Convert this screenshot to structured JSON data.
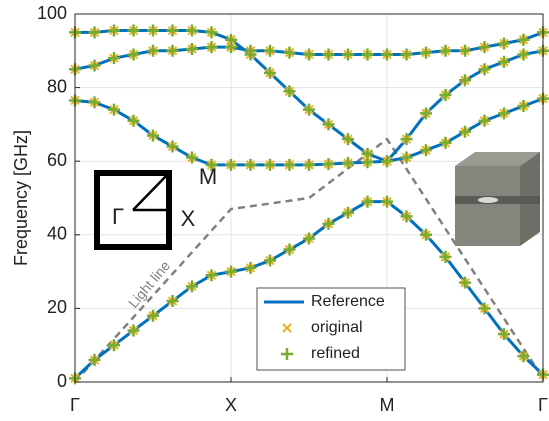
{
  "chart_data": {
    "type": "band",
    "ylabel": "Frequency [GHz]",
    "xlim": [
      0,
      3
    ],
    "xticks": [
      {
        "value": 0,
        "label": "Γ"
      },
      {
        "value": 1,
        "label": "X"
      },
      {
        "value": 2,
        "label": "M"
      },
      {
        "value": 3,
        "label": "Γ"
      }
    ],
    "ylim": [
      0,
      100
    ],
    "yticks": [
      0,
      20,
      40,
      60,
      80,
      100
    ],
    "grid": true,
    "x": [
      0,
      0.125,
      0.25,
      0.375,
      0.5,
      0.625,
      0.75,
      0.875,
      1,
      1.125,
      1.25,
      1.375,
      1.5,
      1.625,
      1.75,
      1.875,
      2,
      2.125,
      2.25,
      2.375,
      2.5,
      2.625,
      2.75,
      2.875,
      3
    ],
    "series": [
      {
        "name": "Reference",
        "color": "#0072bd",
        "style": "line",
        "values": [
          [
            1,
            6,
            10,
            14,
            18,
            22,
            26,
            29,
            30,
            31,
            33,
            36,
            39,
            43,
            46,
            49,
            49,
            45,
            40,
            34,
            27,
            20,
            13,
            7,
            2
          ],
          [
            76.5,
            76,
            74,
            71,
            67,
            64,
            61,
            59,
            59,
            59,
            59,
            59,
            59,
            59.2,
            59.5,
            59.7,
            60,
            61,
            63,
            65,
            68,
            71,
            73,
            75,
            77
          ],
          [
            85,
            86,
            88,
            89,
            90,
            90,
            90.5,
            91,
            91,
            90,
            90,
            89.5,
            89,
            89,
            89,
            89,
            89,
            89,
            89.5,
            90,
            90,
            91,
            92,
            93,
            95
          ],
          [
            95,
            95,
            95.5,
            95.5,
            95.5,
            95.5,
            95.5,
            95,
            93,
            89,
            84,
            79,
            74,
            70,
            66,
            62,
            60,
            66,
            73,
            78,
            82,
            85,
            87,
            89,
            90
          ]
        ]
      },
      {
        "name": "original",
        "color": "#edb120",
        "style": "x",
        "values": [
          [
            1,
            6,
            10,
            14,
            18,
            22,
            26,
            29,
            30,
            31,
            33,
            36,
            39,
            43,
            46,
            49,
            49,
            45,
            40,
            34,
            27,
            20,
            13,
            7,
            2
          ],
          [
            76.5,
            76,
            74,
            71,
            67,
            64,
            61,
            59,
            59,
            59,
            59,
            59,
            59,
            59.2,
            59.5,
            59.7,
            60,
            61,
            63,
            65,
            68,
            71,
            73,
            75,
            77
          ],
          [
            85,
            86,
            88,
            89,
            90,
            90,
            90.5,
            91,
            91,
            90,
            90,
            89.5,
            89,
            89,
            89,
            89,
            89,
            89,
            89.5,
            90,
            90,
            91,
            92,
            93,
            95
          ],
          [
            95,
            95,
            95.5,
            95.5,
            95.5,
            95.5,
            95.5,
            95,
            93,
            89,
            84,
            79,
            74,
            70,
            66,
            62,
            60,
            66,
            73,
            78,
            82,
            85,
            87,
            89,
            90
          ]
        ]
      },
      {
        "name": "refined",
        "color": "#77ac30",
        "style": "plus",
        "values": [
          [
            1,
            6,
            10,
            14,
            18,
            22,
            26,
            29,
            30,
            31,
            33,
            36,
            39,
            43,
            46,
            49,
            49,
            45,
            40,
            34,
            27,
            20,
            13,
            7,
            2
          ],
          [
            76.5,
            76,
            74,
            71,
            67,
            64,
            61,
            59,
            59,
            59,
            59,
            59,
            59,
            59.2,
            59.5,
            59.7,
            60,
            61,
            63,
            65,
            68,
            71,
            73,
            75,
            77
          ],
          [
            85,
            86,
            88,
            89,
            90,
            90,
            90.5,
            91,
            91,
            90,
            90,
            89.5,
            89,
            89,
            89,
            89,
            89,
            89,
            89.5,
            90,
            90,
            91,
            92,
            93,
            95
          ],
          [
            95,
            95,
            95.5,
            95.5,
            95.5,
            95.5,
            95.5,
            95,
            93,
            89,
            84,
            79,
            74,
            70,
            66,
            62,
            60,
            66,
            73,
            78,
            82,
            85,
            87,
            89,
            90
          ]
        ]
      }
    ],
    "light_line": {
      "label": "Light line",
      "color": "#808080",
      "x": [
        0,
        1,
        1.5,
        2,
        3
      ],
      "values": [
        0,
        47,
        50,
        66,
        1
      ]
    },
    "inset_labels": {
      "gamma": "Γ",
      "m": "M",
      "x": "X"
    }
  }
}
